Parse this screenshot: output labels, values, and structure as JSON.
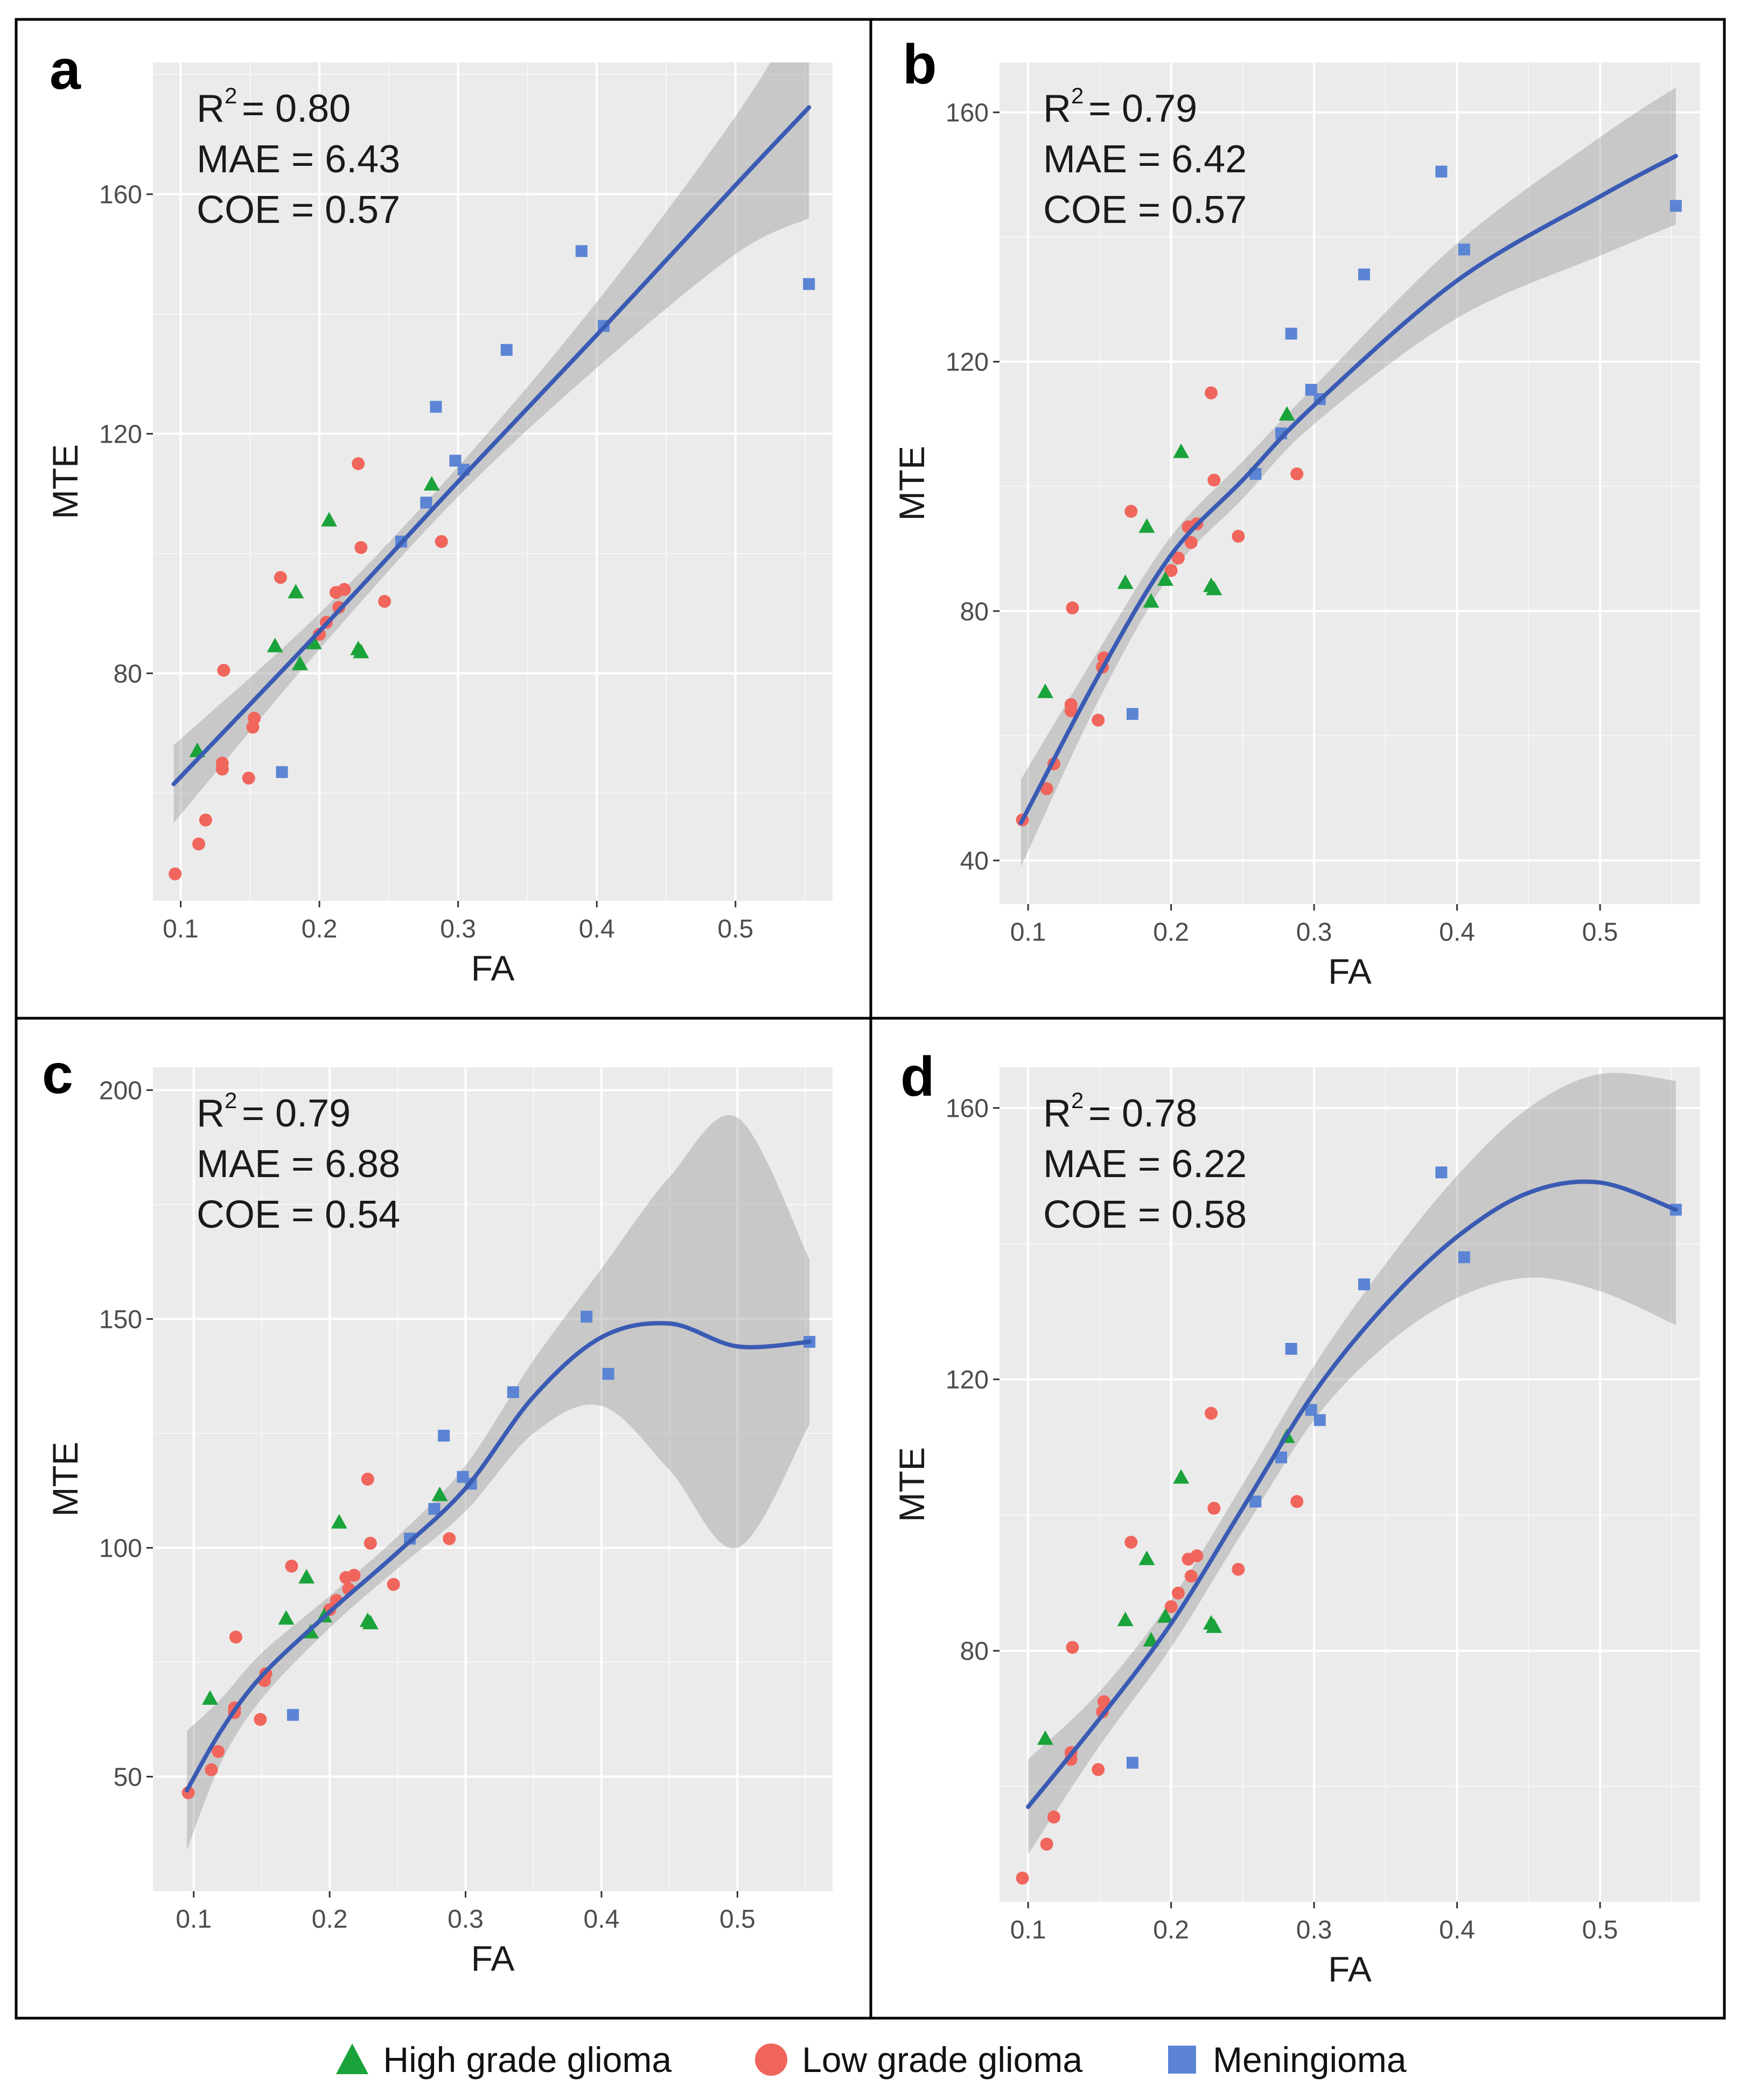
{
  "legend": {
    "items": [
      {
        "name": "High grade glioma",
        "color": "#1aa33a",
        "shape": "triangle"
      },
      {
        "name": "Low grade glioma",
        "color": "#f0655c",
        "shape": "circle"
      },
      {
        "name": "Meningioma",
        "color": "#5b84d4",
        "shape": "square"
      }
    ]
  },
  "chart_data": [
    {
      "panel_label": "a",
      "type": "scatter",
      "model": "linear",
      "xlabel": "FA",
      "ylabel": "MTE",
      "xlim": [
        0.08,
        0.57
      ],
      "ylim": [
        42,
        182
      ],
      "xticks": [
        0.1,
        0.2,
        0.3,
        0.4,
        0.5
      ],
      "xtick_labels": [
        "0.1",
        "0.2",
        "0.3",
        "0.4",
        "0.5"
      ],
      "yticks": [
        80,
        120,
        160
      ],
      "ytick_labels": [
        "80",
        "120",
        "160"
      ],
      "stats": {
        "r2": "= 0.80",
        "mae": "MAE = 6.43",
        "coe": "COE = 0.57"
      },
      "fit": {
        "x": [
          0.095,
          0.2,
          0.3,
          0.4,
          0.5,
          0.553
        ],
        "y": [
          61.5,
          87,
          112,
          136.5,
          161.5,
          174.5
        ],
        "lo": [
          55,
          84,
          109.5,
          131,
          150,
          156
        ],
        "hi": [
          68,
          90,
          114.5,
          142,
          173,
          193
        ]
      }
    },
    {
      "panel_label": "b",
      "type": "scatter",
      "model": "quadratic",
      "xlabel": "FA",
      "ylabel": "MTE",
      "xlim": [
        0.08,
        0.57
      ],
      "ylim": [
        33,
        168
      ],
      "xticks": [
        0.1,
        0.2,
        0.3,
        0.4,
        0.5
      ],
      "xtick_labels": [
        "0.1",
        "0.2",
        "0.3",
        "0.4",
        "0.5"
      ],
      "yticks": [
        40,
        80,
        120,
        160
      ],
      "ytick_labels": [
        "40",
        "80",
        "120",
        "160"
      ],
      "stats": {
        "r2": "= 0.79",
        "mae": "MAE = 6.42",
        "coe": "COE = 0.57"
      },
      "fit": {
        "x": [
          0.095,
          0.15,
          0.2,
          0.25,
          0.3,
          0.4,
          0.5,
          0.553
        ],
        "y": [
          46,
          70,
          89,
          101,
          113,
          133,
          146.5,
          153
        ],
        "lo": [
          39,
          66,
          86,
          98,
          110,
          127,
          137,
          142
        ],
        "hi": [
          53,
          74,
          92,
          104,
          116,
          139,
          156,
          164
        ]
      }
    },
    {
      "panel_label": "c",
      "type": "scatter",
      "model": "spline",
      "xlabel": "FA",
      "ylabel": "MTE",
      "xlim": [
        0.07,
        0.57
      ],
      "ylim": [
        25,
        205
      ],
      "xticks": [
        0.1,
        0.2,
        0.3,
        0.4,
        0.5
      ],
      "xtick_labels": [
        "0.1",
        "0.2",
        "0.3",
        "0.4",
        "0.5"
      ],
      "yticks": [
        50,
        100,
        150,
        200
      ],
      "ytick_labels": [
        "50",
        "100",
        "150",
        "200"
      ],
      "stats": {
        "r2": "= 0.79",
        "mae": "MAE = 6.88",
        "coe": "COE = 0.54"
      },
      "fit": {
        "x": [
          0.095,
          0.12,
          0.15,
          0.2,
          0.25,
          0.3,
          0.35,
          0.4,
          0.45,
          0.5,
          0.553
        ],
        "y": [
          47,
          60,
          72,
          86,
          99,
          113,
          133,
          146,
          149,
          144,
          145
        ],
        "lo": [
          34,
          53,
          67,
          82.5,
          95.5,
          108,
          125,
          131,
          117,
          100,
          127
        ],
        "hi": [
          60,
          67,
          77,
          89.5,
          102.5,
          118,
          141,
          161,
          181,
          194,
          163
        ]
      }
    },
    {
      "panel_label": "d",
      "type": "scatter",
      "model": "cubic",
      "xlabel": "FA",
      "ylabel": "MTE",
      "xlim": [
        0.08,
        0.57
      ],
      "ylim": [
        43,
        166
      ],
      "xticks": [
        0.1,
        0.2,
        0.3,
        0.4,
        0.5
      ],
      "xtick_labels": [
        "0.1",
        "0.2",
        "0.3",
        "0.4",
        "0.5"
      ],
      "yticks": [
        80,
        120,
        160
      ],
      "ytick_labels": [
        "80",
        "120",
        "160"
      ],
      "stats": {
        "r2": "= 0.78",
        "mae": "MAE = 6.22",
        "coe": "COE = 0.58"
      },
      "fit": {
        "x": [
          0.1,
          0.15,
          0.2,
          0.25,
          0.3,
          0.35,
          0.4,
          0.45,
          0.5,
          0.553
        ],
        "y": [
          57,
          70,
          84,
          101,
          118,
          131,
          141,
          147.5,
          149,
          145
        ],
        "lo": [
          50,
          66,
          80.5,
          97.5,
          114,
          125,
          132,
          135,
          133,
          128
        ],
        "hi": [
          64,
          74,
          87.5,
          104.5,
          122,
          137,
          150,
          160,
          165,
          164
        ]
      }
    }
  ],
  "points": {
    "high": [
      [
        0.112,
        67
      ],
      [
        0.168,
        84.5
      ],
      [
        0.183,
        93.5
      ],
      [
        0.186,
        81.5
      ],
      [
        0.196,
        85
      ],
      [
        0.207,
        105.5
      ],
      [
        0.228,
        84
      ],
      [
        0.23,
        83.5
      ],
      [
        0.281,
        111.5
      ]
    ],
    "low": [
      [
        0.096,
        46.5
      ],
      [
        0.113,
        51.5
      ],
      [
        0.118,
        55.5
      ],
      [
        0.13,
        64
      ],
      [
        0.13,
        65
      ],
      [
        0.131,
        80.5
      ],
      [
        0.149,
        62.5
      ],
      [
        0.152,
        71
      ],
      [
        0.153,
        72.5
      ],
      [
        0.172,
        96
      ],
      [
        0.2,
        86.5
      ],
      [
        0.205,
        88.5
      ],
      [
        0.212,
        93.5
      ],
      [
        0.214,
        91
      ],
      [
        0.218,
        94
      ],
      [
        0.228,
        115
      ],
      [
        0.23,
        101
      ],
      [
        0.247,
        92
      ],
      [
        0.288,
        102
      ]
    ],
    "men": [
      [
        0.173,
        63.5
      ],
      [
        0.259,
        102
      ],
      [
        0.277,
        108.5
      ],
      [
        0.284,
        124.5
      ],
      [
        0.298,
        115.5
      ],
      [
        0.304,
        114
      ],
      [
        0.335,
        134
      ],
      [
        0.389,
        150.5
      ],
      [
        0.405,
        138
      ],
      [
        0.553,
        145
      ]
    ]
  }
}
